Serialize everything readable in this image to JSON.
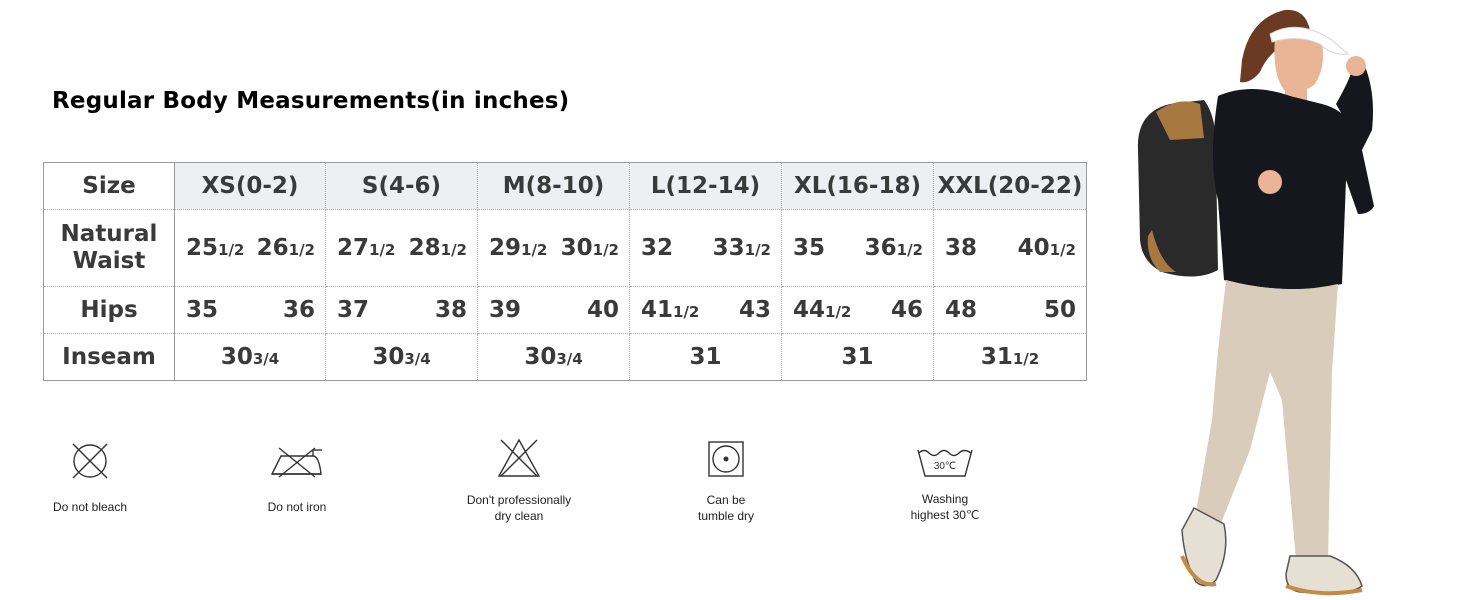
{
  "title": "Regular Body Measurements(in inches)",
  "table": {
    "corner": "Size",
    "sizes": [
      "XS(0-2)",
      "S(4-6)",
      "M(8-10)",
      "L(12-14)",
      "XL(16-18)",
      "XXL(20-22)"
    ],
    "waist_label": "Natural Waist",
    "waist": [
      [
        "25",
        "1/2",
        "26",
        "1/2"
      ],
      [
        "27",
        "1/2",
        "28",
        "1/2"
      ],
      [
        "29",
        "1/2",
        "30",
        "1/2"
      ],
      [
        "32",
        "",
        "33",
        "1/2"
      ],
      [
        "35",
        "",
        "36",
        "1/2"
      ],
      [
        "38",
        "",
        "40",
        "1/2"
      ]
    ],
    "hips_label": "Hips",
    "hips": [
      [
        "35",
        "",
        "36",
        ""
      ],
      [
        "37",
        "",
        "38",
        ""
      ],
      [
        "39",
        "",
        "40",
        ""
      ],
      [
        "41",
        "1/2",
        "43",
        ""
      ],
      [
        "44",
        "1/2",
        "46",
        ""
      ],
      [
        "48",
        "",
        "50",
        ""
      ]
    ],
    "inseam_label": "Inseam",
    "inseam": [
      [
        "30",
        "3/4"
      ],
      [
        "30",
        "3/4"
      ],
      [
        "30",
        "3/4"
      ],
      [
        "31",
        ""
      ],
      [
        "31",
        ""
      ],
      [
        "31",
        "1/2"
      ]
    ]
  },
  "care": [
    {
      "icon": "do-not-bleach-icon",
      "label": "Do not bleach"
    },
    {
      "icon": "do-not-iron-icon",
      "label": "Do not iron"
    },
    {
      "icon": "no-dry-clean-icon",
      "label": "Don't professionally\ndry clean"
    },
    {
      "icon": "tumble-dry-icon",
      "label": "Can be\ntumble dry"
    },
    {
      "icon": "wash-30-icon",
      "label": "Washing\nhighest 30℃",
      "temp": "30℃"
    }
  ]
}
